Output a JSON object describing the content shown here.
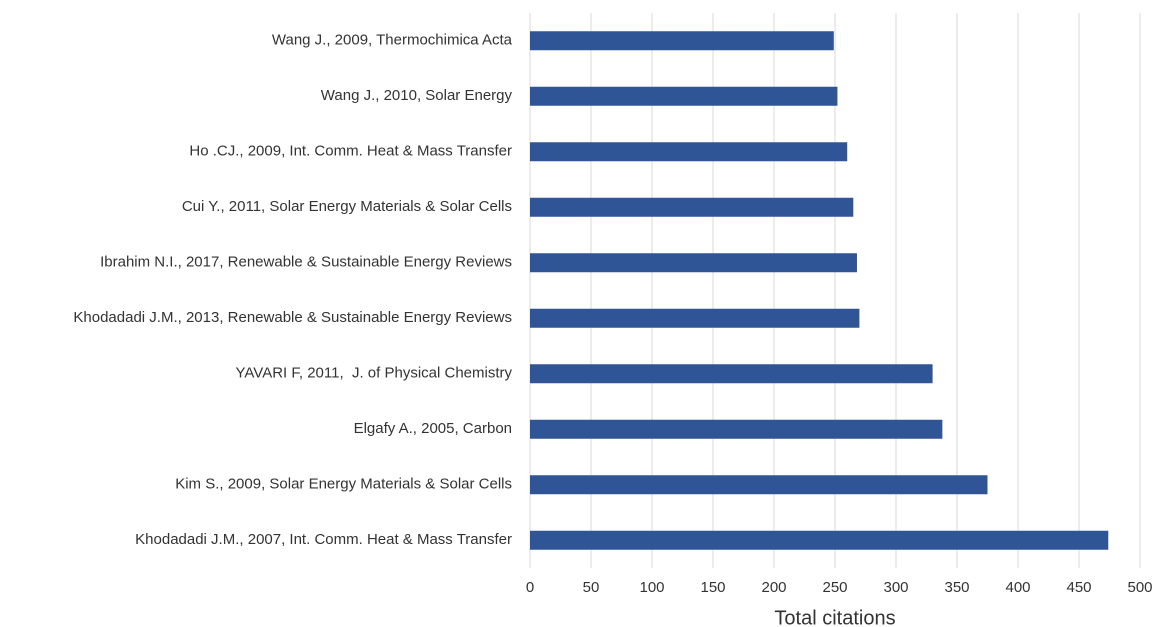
{
  "chart_data": {
    "type": "barh",
    "categories": [
      "Wang J., 2009, Thermochimica Acta",
      "Wang J., 2010, Solar Energy",
      "Ho .CJ., 2009, Int. Comm. Heat & Mass Transfer",
      "Cui Y., 2011, Solar Energy Materials & Solar Cells",
      "Ibrahim N.I., 2017, Renewable & Sustainable Energy Reviews",
      "Khodadadi J.M., 2013, Renewable & Sustainable Energy Reviews",
      "YAVARI F, 2011,  J. of Physical Chemistry",
      "Elgafy A., 2005, Carbon",
      "Kim S., 2009, Solar Energy Materials & Solar Cells",
      "Khodadadi J.M., 2007, Int. Comm. Heat & Mass Transfer"
    ],
    "values": [
      249,
      252,
      260,
      265,
      268,
      270,
      330,
      338,
      375,
      474
    ],
    "color": "#2f5597",
    "xlabel": "Total citations",
    "xlim": [
      0,
      500
    ],
    "xticks": [
      0,
      50,
      100,
      150,
      200,
      250,
      300,
      350,
      400,
      450,
      500
    ],
    "grid": true
  }
}
